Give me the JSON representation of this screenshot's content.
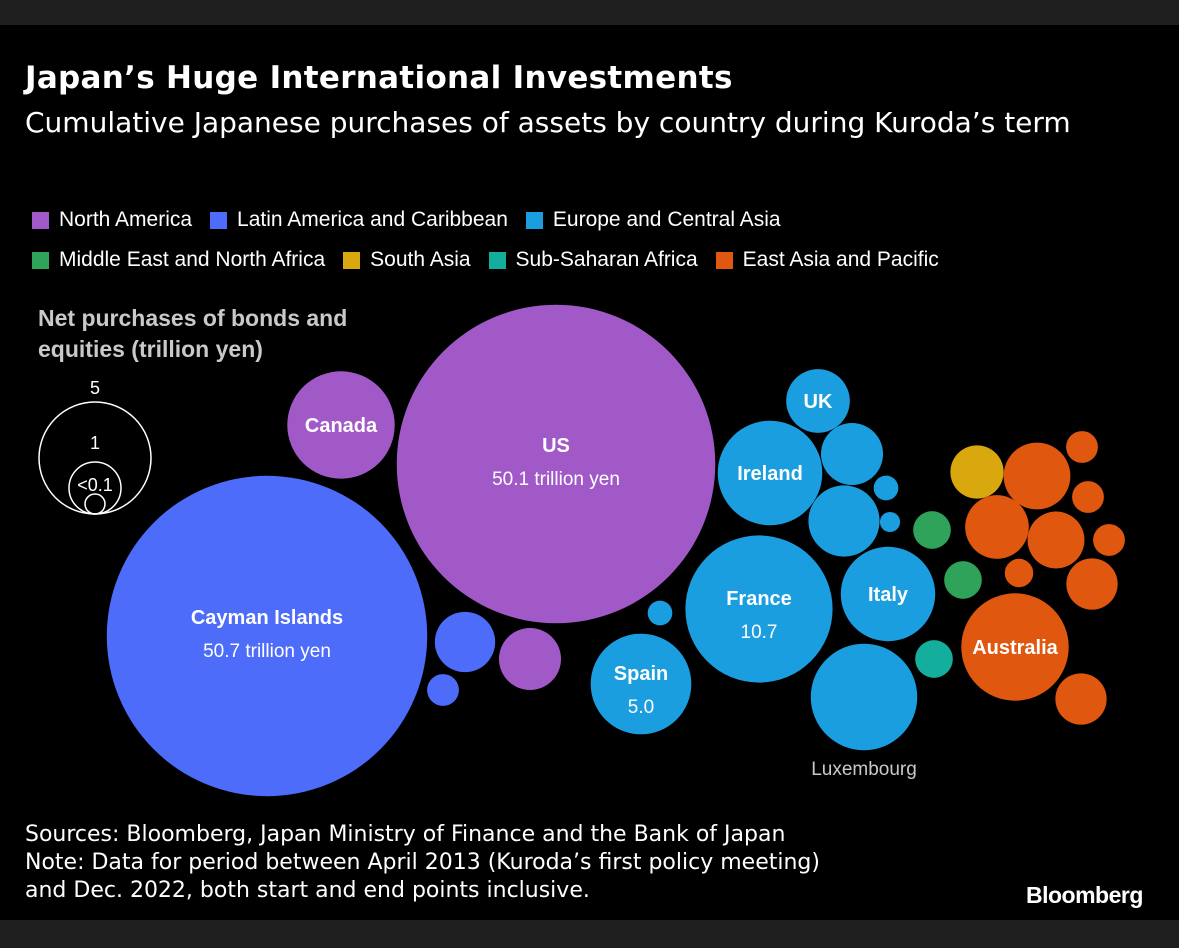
{
  "title": "Japan’s Huge International Investments",
  "subtitle": "Cumulative Japanese purchases of assets by country during Kuroda’s term",
  "size_legend": {
    "title_line1": "Net purchases of bonds and",
    "title_line2": "equities (trillion yen)",
    "labels": [
      "5",
      "1",
      "<0.1"
    ]
  },
  "footer": {
    "sources": "Sources: Bloomberg, Japan Ministry of Finance and the Bank of Japan",
    "note_line1": "Note: Data for period between April 2013 (Kuroda’s first policy meeting)",
    "note_line2": "and Dec. 2022, both start and end points inclusive."
  },
  "brand": "Bloomberg",
  "chart_data": {
    "type": "bubble",
    "title": "Japan’s Huge International Investments",
    "subtitle": "Cumulative Japanese purchases of assets by country during Kuroda’s term",
    "unit": "trillion yen",
    "legend_placement": "top",
    "regions": [
      {
        "name": "North America",
        "color": "#a259c8"
      },
      {
        "name": "Latin America and Caribbean",
        "color": "#4d6cfa"
      },
      {
        "name": "Europe and Central Asia",
        "color": "#1b9ee0"
      },
      {
        "name": "Middle East and North Africa",
        "color": "#2fa35a"
      },
      {
        "name": "South Asia",
        "color": "#d9a80f"
      },
      {
        "name": "Sub-Saharan Africa",
        "color": "#14ae9c"
      },
      {
        "name": "East Asia and Pacific",
        "color": "#e0570f"
      }
    ],
    "bubbles": [
      {
        "label": "Cayman Islands",
        "value": 50.7,
        "value_label": "50.7 trillion yen",
        "region": 1
      },
      {
        "label": "US",
        "value": 50.1,
        "value_label": "50.1 trillion yen",
        "region": 0
      },
      {
        "label": "Canada",
        "value": 5.7,
        "region": 0
      },
      {
        "label": "",
        "value": 1.9,
        "region": 0
      },
      {
        "label": "",
        "value": 1.8,
        "region": 1
      },
      {
        "label": "",
        "value": 0.5,
        "region": 1
      },
      {
        "label": "France",
        "value": 10.7,
        "value_label": "10.7",
        "region": 2
      },
      {
        "label": "Spain",
        "value": 5.0,
        "value_label": "5.0",
        "region": 2
      },
      {
        "label": "Ireland",
        "value": 5.4,
        "region": 2
      },
      {
        "label": "Italy",
        "value": 4.4,
        "region": 2
      },
      {
        "label": "UK",
        "value": 2.0,
        "region": 2
      },
      {
        "label": "Luxembourg",
        "value": 5.6,
        "region": 2
      },
      {
        "label": "",
        "value": 1.9,
        "region": 2
      },
      {
        "label": "",
        "value": 2.5,
        "region": 2
      },
      {
        "label": "",
        "value": 0.3,
        "region": 2
      },
      {
        "label": "",
        "value": 0.2,
        "region": 2
      },
      {
        "label": "",
        "value": 0.3,
        "region": 2
      },
      {
        "label": "",
        "value": 0.7,
        "region": 3
      },
      {
        "label": "",
        "value": 0.7,
        "region": 3
      },
      {
        "label": "",
        "value": 0.7,
        "region": 5
      },
      {
        "label": "",
        "value": 1.4,
        "region": 4
      },
      {
        "label": "Australia",
        "value": 5.7,
        "region": 6
      },
      {
        "label": "",
        "value": 2.2,
        "region": 6
      },
      {
        "label": "",
        "value": 1.6,
        "region": 6
      },
      {
        "label": "",
        "value": 2.0,
        "region": 6
      },
      {
        "label": "",
        "value": 1.3,
        "region": 6
      },
      {
        "label": "",
        "value": 1.3,
        "region": 6
      },
      {
        "label": "",
        "value": 0.5,
        "region": 6
      },
      {
        "label": "",
        "value": 0.5,
        "region": 6
      },
      {
        "label": "",
        "value": 0.5,
        "region": 6
      },
      {
        "label": "",
        "value": 0.4,
        "region": 6
      }
    ]
  }
}
